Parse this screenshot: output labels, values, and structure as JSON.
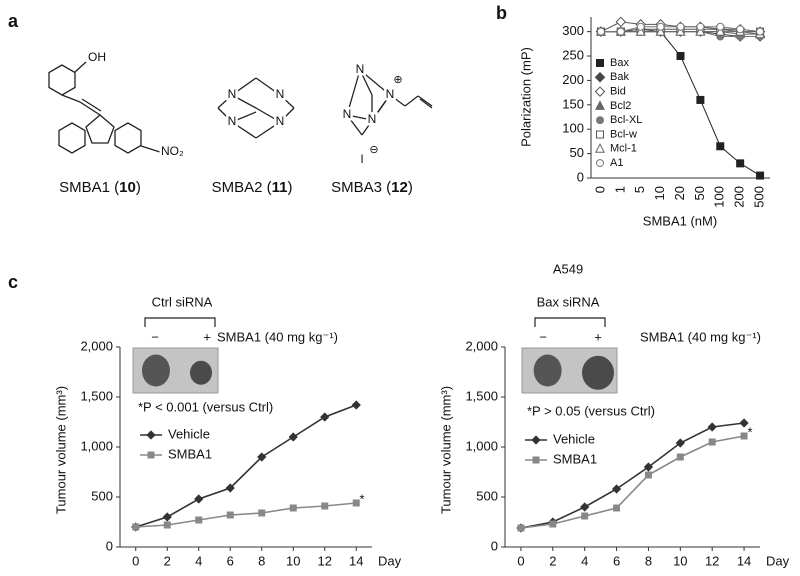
{
  "panel_labels": [
    "a",
    "b",
    "c"
  ],
  "structures": [
    {
      "atoms": [
        "OH",
        "NO₂"
      ],
      "name": [
        "SMBA1 (",
        "10",
        ")"
      ]
    },
    {
      "atoms": [
        "N",
        "N",
        "N",
        "N"
      ],
      "name": [
        "SMBA2 (",
        "11",
        ")"
      ]
    },
    {
      "atoms": [
        "N",
        "N",
        "N",
        "N",
        "⊕",
        "I",
        "⊖"
      ],
      "name": [
        "SMBA3 (",
        "12",
        ")"
      ]
    }
  ],
  "chart_data": [
    {
      "type": "line",
      "xlabel": "SMBA1 (nM)",
      "ylabel": "Polarization (mP)",
      "categories": [
        "0",
        "1",
        "5",
        "10",
        "20",
        "50",
        "100",
        "200",
        "500"
      ],
      "ylim": [
        0,
        330
      ],
      "yticks": [
        0,
        50,
        100,
        150,
        200,
        250,
        300
      ],
      "series": [
        {
          "name": "Bax",
          "color": "#222",
          "marker": "square",
          "filled": true,
          "values": [
            300,
            300,
            300,
            300,
            250,
            160,
            65,
            30,
            5
          ]
        },
        {
          "name": "Bak",
          "color": "#444",
          "marker": "diamond",
          "filled": true,
          "values": [
            300,
            300,
            305,
            300,
            300,
            300,
            295,
            290,
            290
          ]
        },
        {
          "name": "Bid",
          "color": "#555",
          "marker": "diamond",
          "filled": false,
          "values": [
            300,
            320,
            315,
            315,
            310,
            310,
            305,
            305,
            300
          ]
        },
        {
          "name": "Bcl2",
          "color": "#666",
          "marker": "triangle",
          "filled": true,
          "values": [
            300,
            300,
            300,
            300,
            300,
            300,
            300,
            295,
            295
          ]
        },
        {
          "name": "Bcl-XL",
          "color": "#777",
          "marker": "circle",
          "filled": true,
          "values": [
            300,
            300,
            300,
            300,
            300,
            300,
            290,
            290,
            290
          ]
        },
        {
          "name": "Bcl-w",
          "color": "#555",
          "marker": "square",
          "filled": false,
          "values": [
            300,
            300,
            305,
            305,
            305,
            305,
            305,
            300,
            300
          ]
        },
        {
          "name": "Mcl-1",
          "color": "#666",
          "marker": "triangle",
          "filled": false,
          "values": [
            300,
            300,
            300,
            300,
            300,
            300,
            300,
            300,
            295
          ]
        },
        {
          "name": "A1",
          "color": "#777",
          "marker": "circle",
          "filled": false,
          "values": [
            300,
            300,
            310,
            310,
            310,
            310,
            310,
            305,
            300
          ]
        }
      ]
    },
    {
      "type": "line",
      "xlabel": "Day",
      "ylabel": "Tumour volume (mm³)",
      "x": [
        0,
        2,
        4,
        6,
        8,
        10,
        12,
        14
      ],
      "xlim": [
        -1,
        15
      ],
      "xticks": [
        0,
        2,
        4,
        6,
        8,
        10,
        12,
        14
      ],
      "ylim": [
        0,
        2000
      ],
      "yticks": [
        0,
        500,
        {
          "value": 1000,
          "label": "1,000"
        },
        {
          "value": 1500,
          "label": "1,500"
        },
        {
          "value": 2000,
          "label": "2,000"
        }
      ],
      "series": [
        {
          "name": "Vehicle",
          "color": "#333",
          "marker": "diamond",
          "filled": true,
          "values": [
            200,
            300,
            480,
            590,
            900,
            1100,
            1300,
            1420
          ]
        },
        {
          "name": "SMBA1",
          "color": "#888",
          "marker": "square",
          "filled": true,
          "values": [
            200,
            220,
            270,
            320,
            340,
            390,
            410,
            440
          ]
        }
      ],
      "annotations": {
        "inset_label": "Ctrl siRNA",
        "treatment": "SMBA1 (40 mg kg⁻¹)",
        "minus": "−",
        "plus": "+",
        "stat": "*P < 0.001 (versus Ctrl)",
        "star": "*"
      }
    },
    {
      "type": "line",
      "xlabel": "Day",
      "ylabel": "Tumour volume (mm³)",
      "x": [
        0,
        2,
        4,
        6,
        8,
        10,
        12,
        14
      ],
      "xlim": [
        -1,
        15
      ],
      "xticks": [
        0,
        2,
        4,
        6,
        8,
        10,
        12,
        14
      ],
      "ylim": [
        0,
        2000
      ],
      "yticks": [
        0,
        500,
        {
          "value": 1000,
          "label": "1,000"
        },
        {
          "value": 1500,
          "label": "1,500"
        },
        {
          "value": 2000,
          "label": "2,000"
        }
      ],
      "series": [
        {
          "name": "Vehicle",
          "color": "#333",
          "marker": "diamond",
          "filled": true,
          "values": [
            190,
            250,
            400,
            580,
            800,
            1040,
            1200,
            1240
          ]
        },
        {
          "name": "SMBA1",
          "color": "#888",
          "marker": "square",
          "filled": true,
          "values": [
            190,
            230,
            310,
            390,
            720,
            900,
            1050,
            1110
          ]
        }
      ],
      "annotations": {
        "cell_line": "A549",
        "inset_label": "Bax siRNA",
        "treatment": "SMBA1 (40 mg kg⁻¹)",
        "minus": "−",
        "plus": "+",
        "stat": "*P > 0.05 (versus Ctrl)",
        "star": "*"
      }
    }
  ]
}
